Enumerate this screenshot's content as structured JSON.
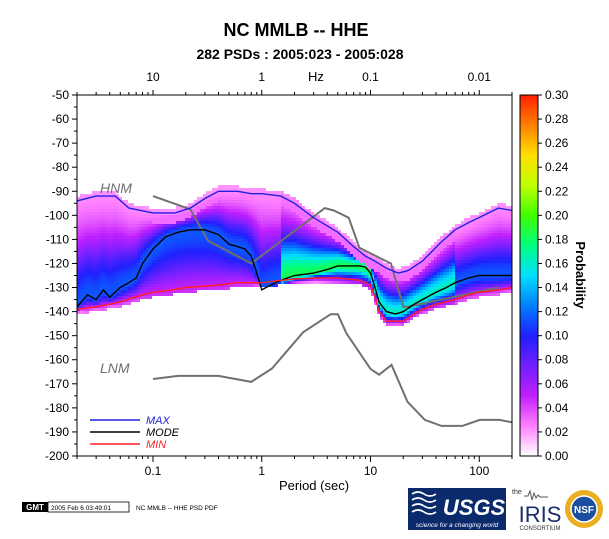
{
  "chart_data": {
    "type": "heatmap",
    "title": "NC MMLB -- HHE",
    "subtitle": "282 PSDs : 2005:023 - 2005:028",
    "xlabel": "Period (sec)",
    "x_scale": "log",
    "xlim": [
      0.02,
      200
    ],
    "x_ticks": [
      {
        "value": 0.1,
        "label": "0.1"
      },
      {
        "value": 1,
        "label": "1"
      },
      {
        "value": 10,
        "label": "10"
      },
      {
        "value": 100,
        "label": "100"
      }
    ],
    "top_axis_label": "Hz",
    "top_ticks": [
      {
        "period": 0.1,
        "label": "10"
      },
      {
        "period": 1,
        "label": "1"
      },
      {
        "period": 10,
        "label": "0.1"
      },
      {
        "period": 100,
        "label": "0.01"
      }
    ],
    "ylim": [
      -200,
      -50
    ],
    "y_ticks": [
      -50,
      -60,
      -70,
      -80,
      -90,
      -100,
      -110,
      -120,
      -130,
      -140,
      -150,
      -160,
      -170,
      -180,
      -190,
      -200
    ],
    "colorbar": {
      "label": "Probability",
      "range": [
        0.0,
        0.3
      ],
      "ticks": [
        "0.00",
        "0.02",
        "0.04",
        "0.06",
        "0.08",
        "0.10",
        "0.12",
        "0.14",
        "0.16",
        "0.18",
        "0.20",
        "0.22",
        "0.24",
        "0.26",
        "0.28",
        "0.30"
      ],
      "colors": [
        "#ffffff",
        "#ff80ff",
        "#c020ff",
        "#7020ff",
        "#2020ff",
        "#0080ff",
        "#00e0ff",
        "#00ff80",
        "#40ff00",
        "#c0ff00",
        "#ffe000",
        "#ff8000",
        "#ff2000"
      ]
    },
    "model_curves": [
      {
        "name": "HNM",
        "color": "#707070",
        "points": [
          [
            0.1,
            -92
          ],
          [
            0.22,
            -97.5
          ],
          [
            0.32,
            -110.5
          ],
          [
            0.8,
            -120
          ],
          [
            3.8,
            -97
          ],
          [
            4.6,
            -98
          ],
          [
            6.3,
            -101
          ],
          [
            7.9,
            -113.5
          ],
          [
            15.4,
            -120
          ],
          [
            20,
            -138
          ],
          [
            21.9,
            -138
          ],
          [
            150,
            -130
          ]
        ]
      },
      {
        "name": "LNM",
        "color": "#707070",
        "points": [
          [
            0.1,
            -168
          ],
          [
            0.17,
            -166.7
          ],
          [
            0.4,
            -166.7
          ],
          [
            0.8,
            -169.2
          ],
          [
            1.24,
            -163.7
          ],
          [
            2.4,
            -148.6
          ],
          [
            4.3,
            -141.1
          ],
          [
            5,
            -141.1
          ],
          [
            6,
            -149
          ],
          [
            10,
            -163.8
          ],
          [
            12,
            -166.2
          ],
          [
            15.6,
            -162.1
          ],
          [
            21.9,
            -177.5
          ],
          [
            31.6,
            -185
          ],
          [
            45,
            -187.5
          ],
          [
            70,
            -187.5
          ],
          [
            101,
            -185
          ],
          [
            154,
            -185
          ],
          [
            200,
            -186
          ]
        ]
      }
    ],
    "series": [
      {
        "name": "MAX",
        "color": "#2020e0",
        "points": [
          [
            0.02,
            -94
          ],
          [
            0.03,
            -92
          ],
          [
            0.045,
            -92
          ],
          [
            0.06,
            -97
          ],
          [
            0.1,
            -99
          ],
          [
            0.16,
            -99
          ],
          [
            0.22,
            -97
          ],
          [
            0.3,
            -93
          ],
          [
            0.4,
            -90
          ],
          [
            0.6,
            -90
          ],
          [
            0.8,
            -91
          ],
          [
            1,
            -91
          ],
          [
            1.5,
            -92
          ],
          [
            2,
            -95
          ],
          [
            3,
            -101
          ],
          [
            5,
            -107
          ],
          [
            7,
            -113
          ],
          [
            9,
            -117
          ],
          [
            11,
            -119
          ],
          [
            14,
            -122
          ],
          [
            18,
            -124
          ],
          [
            22,
            -123
          ],
          [
            30,
            -119
          ],
          [
            45,
            -111
          ],
          [
            60,
            -106
          ],
          [
            80,
            -103
          ],
          [
            110,
            -100
          ],
          [
            150,
            -97
          ],
          [
            200,
            -98
          ]
        ]
      },
      {
        "name": "MODE",
        "color": "#000000",
        "points": [
          [
            0.02,
            -138
          ],
          [
            0.025,
            -133
          ],
          [
            0.03,
            -135
          ],
          [
            0.035,
            -131
          ],
          [
            0.04,
            -134
          ],
          [
            0.05,
            -130
          ],
          [
            0.06,
            -128
          ],
          [
            0.07,
            -126
          ],
          [
            0.08,
            -120
          ],
          [
            0.1,
            -114
          ],
          [
            0.13,
            -109
          ],
          [
            0.17,
            -107
          ],
          [
            0.22,
            -106
          ],
          [
            0.3,
            -106
          ],
          [
            0.4,
            -108
          ],
          [
            0.5,
            -112
          ],
          [
            0.6,
            -113
          ],
          [
            0.7,
            -114
          ],
          [
            0.8,
            -117
          ],
          [
            0.9,
            -124
          ],
          [
            1,
            -131
          ],
          [
            1.2,
            -129
          ],
          [
            1.5,
            -127
          ],
          [
            2,
            -125
          ],
          [
            3,
            -124
          ],
          [
            4,
            -122.5
          ],
          [
            5,
            -121
          ],
          [
            6,
            -121
          ],
          [
            7,
            -121
          ],
          [
            8,
            -121
          ],
          [
            9,
            -121.5
          ],
          [
            10,
            -124
          ],
          [
            11,
            -130
          ],
          [
            12,
            -136
          ],
          [
            14,
            -140
          ],
          [
            17,
            -141
          ],
          [
            20,
            -140
          ],
          [
            25,
            -137
          ],
          [
            30,
            -135
          ],
          [
            40,
            -132
          ],
          [
            50,
            -130
          ],
          [
            60,
            -128
          ],
          [
            80,
            -126
          ],
          [
            100,
            -125
          ],
          [
            150,
            -125
          ],
          [
            200,
            -125
          ]
        ]
      },
      {
        "name": "MIN",
        "color": "#ff2020",
        "points": [
          [
            0.02,
            -139
          ],
          [
            0.03,
            -138
          ],
          [
            0.05,
            -136
          ],
          [
            0.08,
            -133
          ],
          [
            0.1,
            -132
          ],
          [
            0.15,
            -131
          ],
          [
            0.2,
            -130
          ],
          [
            0.4,
            -129
          ],
          [
            0.6,
            -128
          ],
          [
            0.8,
            -128
          ],
          [
            1,
            -128
          ],
          [
            1.5,
            -127
          ],
          [
            2,
            -126.5
          ],
          [
            3,
            -126
          ],
          [
            5,
            -126
          ],
          [
            8,
            -127
          ],
          [
            10,
            -129
          ],
          [
            11,
            -134
          ],
          [
            12,
            -140
          ],
          [
            14,
            -144
          ],
          [
            17,
            -144
          ],
          [
            20,
            -144
          ],
          [
            25,
            -141
          ],
          [
            30,
            -139
          ],
          [
            40,
            -137
          ],
          [
            60,
            -135
          ],
          [
            80,
            -133
          ],
          [
            100,
            -132
          ],
          [
            150,
            -131
          ],
          [
            200,
            -130
          ]
        ]
      }
    ]
  },
  "footer": {
    "gmt_logo": "GMT",
    "timestamp": "2005 Feb  6 03:49:01",
    "caption": "NC MMLB -- HHE PSD PDF"
  },
  "logos": {
    "usgs_main": "USGS",
    "usgs_tagline": "science for a changing world",
    "iris_small": "the",
    "iris_main": "IRIS",
    "iris_sub": "CONSORTIUM",
    "nsf_main": "NSF"
  }
}
